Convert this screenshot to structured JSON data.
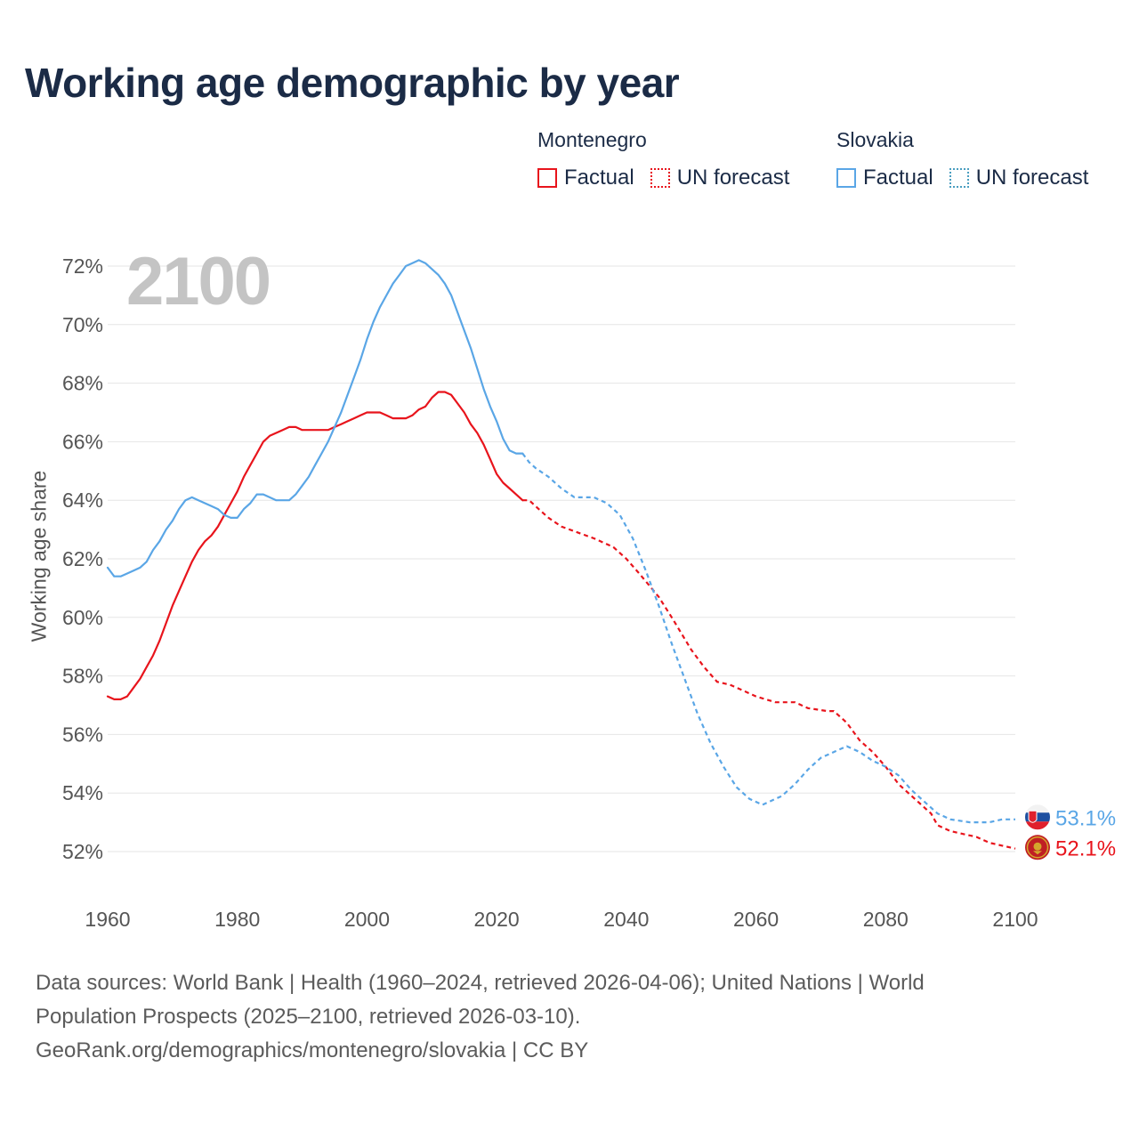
{
  "title": "Working age demographic by year",
  "legend": {
    "groups": [
      {
        "name": "Montenegro",
        "color": "#e8141c",
        "factual_label": "Factual",
        "forecast_label": "UN forecast"
      },
      {
        "name": "Slovakia",
        "color": "#5aa6e6",
        "forecast_color": "#4a9ec0",
        "factual_label": "Factual",
        "forecast_label": "UN forecast"
      }
    ]
  },
  "chart_data": {
    "type": "line",
    "title": "Working age demographic by year",
    "ylabel": "Working age share",
    "xlabel": "",
    "year_label": "2100",
    "xlim": [
      1960,
      2100
    ],
    "ylim": [
      51,
      73
    ],
    "x_ticks": [
      "1960",
      "1980",
      "2000",
      "2020",
      "2040",
      "2060",
      "2080",
      "2100"
    ],
    "y_ticks": [
      "52%",
      "54%",
      "56%",
      "58%",
      "60%",
      "62%",
      "64%",
      "66%",
      "68%",
      "70%",
      "72%"
    ],
    "y_tick_values": [
      52,
      54,
      56,
      58,
      60,
      62,
      64,
      66,
      68,
      70,
      72
    ],
    "factual_end_year": 2024,
    "series": [
      {
        "name": "Montenegro",
        "color": "#e8141c",
        "end_label": "52.1%",
        "points": [
          [
            1960,
            57.3
          ],
          [
            1961,
            57.2
          ],
          [
            1962,
            57.2
          ],
          [
            1963,
            57.3
          ],
          [
            1964,
            57.6
          ],
          [
            1965,
            57.9
          ],
          [
            1966,
            58.3
          ],
          [
            1967,
            58.7
          ],
          [
            1968,
            59.2
          ],
          [
            1969,
            59.8
          ],
          [
            1970,
            60.4
          ],
          [
            1971,
            60.9
          ],
          [
            1972,
            61.4
          ],
          [
            1973,
            61.9
          ],
          [
            1974,
            62.3
          ],
          [
            1975,
            62.6
          ],
          [
            1976,
            62.8
          ],
          [
            1977,
            63.1
          ],
          [
            1978,
            63.5
          ],
          [
            1979,
            63.9
          ],
          [
            1980,
            64.3
          ],
          [
            1981,
            64.8
          ],
          [
            1982,
            65.2
          ],
          [
            1983,
            65.6
          ],
          [
            1984,
            66.0
          ],
          [
            1985,
            66.2
          ],
          [
            1986,
            66.3
          ],
          [
            1987,
            66.4
          ],
          [
            1988,
            66.5
          ],
          [
            1989,
            66.5
          ],
          [
            1990,
            66.4
          ],
          [
            1991,
            66.4
          ],
          [
            1992,
            66.4
          ],
          [
            1993,
            66.4
          ],
          [
            1994,
            66.4
          ],
          [
            1995,
            66.5
          ],
          [
            1996,
            66.6
          ],
          [
            1997,
            66.7
          ],
          [
            1998,
            66.8
          ],
          [
            1999,
            66.9
          ],
          [
            2000,
            67.0
          ],
          [
            2001,
            67.0
          ],
          [
            2002,
            67.0
          ],
          [
            2003,
            66.9
          ],
          [
            2004,
            66.8
          ],
          [
            2005,
            66.8
          ],
          [
            2006,
            66.8
          ],
          [
            2007,
            66.9
          ],
          [
            2008,
            67.1
          ],
          [
            2009,
            67.2
          ],
          [
            2010,
            67.5
          ],
          [
            2011,
            67.7
          ],
          [
            2012,
            67.7
          ],
          [
            2013,
            67.6
          ],
          [
            2014,
            67.3
          ],
          [
            2015,
            67.0
          ],
          [
            2016,
            66.6
          ],
          [
            2017,
            66.3
          ],
          [
            2018,
            65.9
          ],
          [
            2019,
            65.4
          ],
          [
            2020,
            64.9
          ],
          [
            2021,
            64.6
          ],
          [
            2022,
            64.4
          ],
          [
            2023,
            64.2
          ],
          [
            2024,
            64.0
          ],
          [
            2025,
            64.0
          ],
          [
            2026,
            63.8
          ],
          [
            2027,
            63.6
          ],
          [
            2028,
            63.4
          ],
          [
            2030,
            63.1
          ],
          [
            2035,
            62.7
          ],
          [
            2038,
            62.4
          ],
          [
            2040,
            62.0
          ],
          [
            2042,
            61.5
          ],
          [
            2045,
            60.7
          ],
          [
            2047,
            60.0
          ],
          [
            2050,
            58.9
          ],
          [
            2052,
            58.3
          ],
          [
            2054,
            57.8
          ],
          [
            2056,
            57.7
          ],
          [
            2058,
            57.5
          ],
          [
            2060,
            57.3
          ],
          [
            2063,
            57.1
          ],
          [
            2066,
            57.1
          ],
          [
            2068,
            56.9
          ],
          [
            2071,
            56.8
          ],
          [
            2072,
            56.8
          ],
          [
            2074,
            56.4
          ],
          [
            2076,
            55.8
          ],
          [
            2078,
            55.4
          ],
          [
            2080,
            54.9
          ],
          [
            2082,
            54.3
          ],
          [
            2085,
            53.7
          ],
          [
            2087,
            53.3
          ],
          [
            2088,
            52.9
          ],
          [
            2090,
            52.7
          ],
          [
            2092,
            52.6
          ],
          [
            2094,
            52.5
          ],
          [
            2096,
            52.3
          ],
          [
            2098,
            52.2
          ],
          [
            2100,
            52.1
          ]
        ]
      },
      {
        "name": "Slovakia",
        "color": "#5aa6e6",
        "end_label": "53.1%",
        "points": [
          [
            1960,
            61.7
          ],
          [
            1961,
            61.4
          ],
          [
            1962,
            61.4
          ],
          [
            1963,
            61.5
          ],
          [
            1964,
            61.6
          ],
          [
            1965,
            61.7
          ],
          [
            1966,
            61.9
          ],
          [
            1967,
            62.3
          ],
          [
            1968,
            62.6
          ],
          [
            1969,
            63.0
          ],
          [
            1970,
            63.3
          ],
          [
            1971,
            63.7
          ],
          [
            1972,
            64.0
          ],
          [
            1973,
            64.1
          ],
          [
            1974,
            64.0
          ],
          [
            1975,
            63.9
          ],
          [
            1976,
            63.8
          ],
          [
            1977,
            63.7
          ],
          [
            1978,
            63.5
          ],
          [
            1979,
            63.4
          ],
          [
            1980,
            63.4
          ],
          [
            1981,
            63.7
          ],
          [
            1982,
            63.9
          ],
          [
            1983,
            64.2
          ],
          [
            1984,
            64.2
          ],
          [
            1985,
            64.1
          ],
          [
            1986,
            64.0
          ],
          [
            1987,
            64.0
          ],
          [
            1988,
            64.0
          ],
          [
            1989,
            64.2
          ],
          [
            1990,
            64.5
          ],
          [
            1991,
            64.8
          ],
          [
            1992,
            65.2
          ],
          [
            1993,
            65.6
          ],
          [
            1994,
            66.0
          ],
          [
            1995,
            66.5
          ],
          [
            1996,
            67.0
          ],
          [
            1997,
            67.6
          ],
          [
            1998,
            68.2
          ],
          [
            1999,
            68.8
          ],
          [
            2000,
            69.5
          ],
          [
            2001,
            70.1
          ],
          [
            2002,
            70.6
          ],
          [
            2003,
            71.0
          ],
          [
            2004,
            71.4
          ],
          [
            2005,
            71.7
          ],
          [
            2006,
            72.0
          ],
          [
            2007,
            72.1
          ],
          [
            2008,
            72.2
          ],
          [
            2009,
            72.1
          ],
          [
            2010,
            71.9
          ],
          [
            2011,
            71.7
          ],
          [
            2012,
            71.4
          ],
          [
            2013,
            71.0
          ],
          [
            2014,
            70.4
          ],
          [
            2015,
            69.8
          ],
          [
            2016,
            69.2
          ],
          [
            2017,
            68.5
          ],
          [
            2018,
            67.8
          ],
          [
            2019,
            67.2
          ],
          [
            2020,
            66.7
          ],
          [
            2021,
            66.1
          ],
          [
            2022,
            65.7
          ],
          [
            2023,
            65.6
          ],
          [
            2024,
            65.6
          ],
          [
            2025,
            65.3
          ],
          [
            2026,
            65.1
          ],
          [
            2028,
            64.8
          ],
          [
            2030,
            64.4
          ],
          [
            2032,
            64.1
          ],
          [
            2035,
            64.1
          ],
          [
            2037,
            63.9
          ],
          [
            2039,
            63.5
          ],
          [
            2041,
            62.7
          ],
          [
            2043,
            61.6
          ],
          [
            2045,
            60.4
          ],
          [
            2047,
            59.1
          ],
          [
            2049,
            57.9
          ],
          [
            2051,
            56.7
          ],
          [
            2053,
            55.7
          ],
          [
            2055,
            54.9
          ],
          [
            2057,
            54.2
          ],
          [
            2059,
            53.8
          ],
          [
            2061,
            53.6
          ],
          [
            2064,
            53.9
          ],
          [
            2066,
            54.3
          ],
          [
            2068,
            54.8
          ],
          [
            2070,
            55.2
          ],
          [
            2072,
            55.4
          ],
          [
            2074,
            55.6
          ],
          [
            2076,
            55.4
          ],
          [
            2078,
            55.1
          ],
          [
            2080,
            54.9
          ],
          [
            2082,
            54.6
          ],
          [
            2084,
            54.1
          ],
          [
            2086,
            53.7
          ],
          [
            2088,
            53.3
          ],
          [
            2090,
            53.1
          ],
          [
            2093,
            53.0
          ],
          [
            2096,
            53.0
          ],
          [
            2098,
            53.1
          ],
          [
            2100,
            53.1
          ]
        ]
      }
    ]
  },
  "sources": {
    "line1": "Data sources: World Bank | Health (1960–2024, retrieved 2026-04-06); United Nations | World",
    "line2": "Population Prospects (2025–2100, retrieved 2026-03-10).",
    "line3": "GeoRank.org/demographics/montenegro/slovakia | CC BY"
  }
}
